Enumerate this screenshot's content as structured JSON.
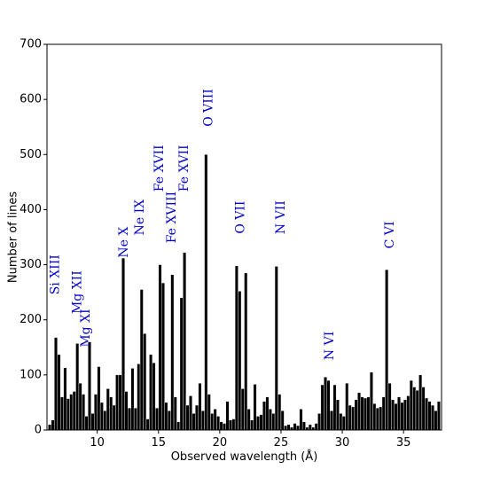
{
  "chart_data": {
    "type": "histogram",
    "xlabel": "Observed wavelength (Å)",
    "ylabel": "Number of lines",
    "color": "#000000",
    "bins": [
      6,
      6.25,
      6.5,
      6.75,
      7,
      7.25,
      7.5,
      7.75,
      8,
      8.25,
      8.5,
      8.75,
      9,
      9.25,
      9.5,
      9.75,
      10,
      10.25,
      10.5,
      10.75,
      11,
      11.25,
      11.5,
      11.75,
      12,
      12.25,
      12.5,
      12.75,
      13,
      13.25,
      13.5,
      13.75,
      14,
      14.25,
      14.5,
      14.75,
      15,
      15.25,
      15.5,
      15.75,
      16,
      16.25,
      16.5,
      16.75,
      17,
      17.25,
      17.5,
      17.75,
      18,
      18.25,
      18.5,
      18.75,
      19,
      19.25,
      19.5,
      19.75,
      20,
      20.25,
      20.5,
      20.75,
      21,
      21.25,
      21.5,
      21.75,
      22,
      22.25,
      22.5,
      22.75,
      23,
      23.25,
      23.5,
      23.75,
      24,
      24.25,
      24.5,
      24.75,
      25,
      25.25,
      25.5,
      25.75,
      26,
      26.25,
      26.5,
      26.75,
      27,
      27.25,
      27.5,
      27.75,
      28,
      28.25,
      28.5,
      28.75,
      29,
      29.25,
      29.5,
      29.75,
      30,
      30.25,
      30.5,
      30.75,
      31,
      31.25,
      31.5,
      31.75,
      32,
      32.25,
      32.5,
      32.75,
      33,
      33.25,
      33.5,
      33.75,
      34,
      34.25,
      34.5,
      34.75,
      35,
      35.25,
      35.5,
      35.75,
      36,
      36.25,
      36.5,
      36.75,
      37,
      37.25,
      37.5,
      37.75,
      38
    ],
    "values": [
      10,
      18,
      168,
      137,
      60,
      113,
      57,
      65,
      70,
      157,
      85,
      65,
      25,
      160,
      30,
      65,
      115,
      50,
      35,
      75,
      60,
      45,
      100,
      100,
      312,
      70,
      40,
      112,
      40,
      120,
      255,
      175,
      20,
      137,
      122,
      40,
      300,
      267,
      50,
      35,
      282,
      60,
      15,
      240,
      322,
      45,
      62,
      30,
      45,
      85,
      35,
      500,
      65,
      30,
      38,
      25,
      15,
      12,
      52,
      18,
      20,
      298,
      252,
      75,
      285,
      38,
      18,
      83,
      25,
      28,
      52,
      60,
      38,
      30,
      297,
      65,
      35,
      8,
      10,
      5,
      12,
      8,
      38,
      15,
      5,
      10,
      5,
      12,
      30,
      82,
      96,
      90,
      35,
      82,
      55,
      30,
      25,
      85,
      45,
      42,
      55,
      68,
      60,
      58,
      60,
      105,
      48,
      40,
      42,
      60,
      291,
      85,
      55,
      48,
      60,
      50,
      55,
      62,
      90,
      78,
      72,
      100,
      78,
      58,
      52,
      45,
      35,
      52
    ],
    "xlim": [
      5.9,
      38.1
    ],
    "ylim": [
      0,
      700
    ],
    "xticks": [
      10,
      15,
      20,
      25,
      30,
      35
    ],
    "yticks": [
      0,
      100,
      200,
      300,
      400,
      500,
      600,
      700
    ],
    "annotation_color": "#0000cc",
    "annotations": [
      {
        "text": "Si XIII",
        "x": 6.6,
        "y": 282
      },
      {
        "text": "Mg XII",
        "x": 8.4,
        "y": 250
      },
      {
        "text": "Mg XI",
        "x": 9.1,
        "y": 185
      },
      {
        "text": "Ne X",
        "x": 12.2,
        "y": 341
      },
      {
        "text": "Ne IX",
        "x": 13.5,
        "y": 386
      },
      {
        "text": "Fe XVII",
        "x": 15.1,
        "y": 475
      },
      {
        "text": "Fe XVIII",
        "x": 16.1,
        "y": 386
      },
      {
        "text": "Fe XVII",
        "x": 17.1,
        "y": 475
      },
      {
        "text": "O VIII",
        "x": 19.1,
        "y": 585
      },
      {
        "text": "O VII",
        "x": 21.7,
        "y": 386
      },
      {
        "text": "N VII",
        "x": 25.0,
        "y": 386
      },
      {
        "text": "N VI",
        "x": 29.0,
        "y": 153
      },
      {
        "text": "C VI",
        "x": 33.9,
        "y": 354
      }
    ]
  }
}
